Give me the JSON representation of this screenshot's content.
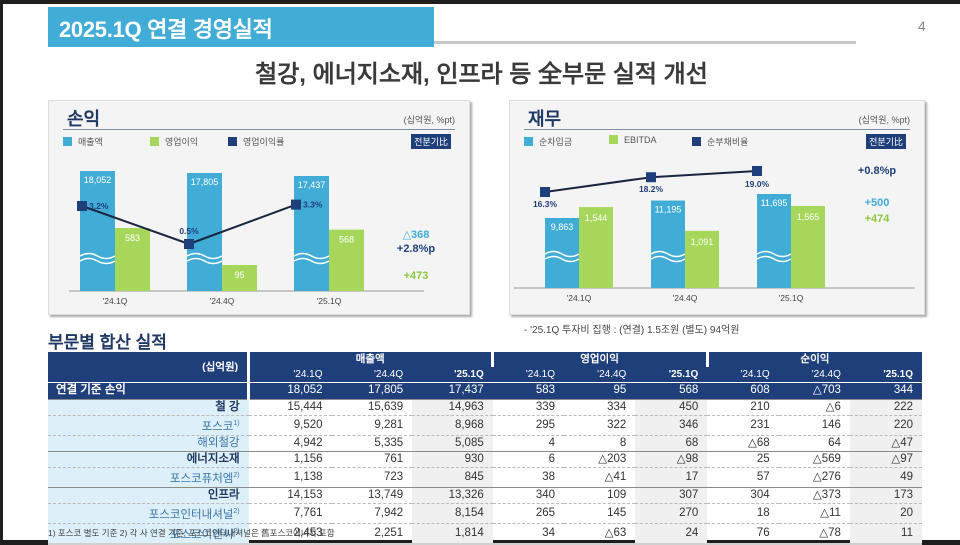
{
  "header": {
    "title": "2025.1Q 연결 경영실적",
    "page_number": "4",
    "headline": "철강, 에너지소재, 인프라 등 全부문 실적 개선"
  },
  "colors": {
    "title_bar": "#41acd6",
    "navy": "#1f3f7a",
    "sky": "#41acd6",
    "green": "#a6d75b"
  },
  "left_panel": {
    "title": "손익",
    "unit": "(십억원, %pt)",
    "legend": [
      "매출액",
      "영업이익",
      "영업이익률"
    ],
    "badge": "전분기比",
    "deltas": [
      {
        "text": "△368",
        "color": "#41acd6"
      },
      {
        "text": "+2.8%p",
        "color": "#1f3f7a"
      },
      {
        "text": "+473",
        "color": "#8cc63f"
      }
    ]
  },
  "right_panel": {
    "title": "재무",
    "unit": "(십억원, %pt)",
    "legend": [
      "순차입금",
      "EBITDA",
      "순부채비율"
    ],
    "badge": "전분기比",
    "deltas": [
      {
        "text": "+0.8%p",
        "color": "#1f3f7a"
      },
      {
        "text": "+500",
        "color": "#41acd6"
      },
      {
        "text": "+474",
        "color": "#8cc63f"
      }
    ],
    "note": "- '25.1Q 투자비 집행 : (연결) 1.5조원  (별도) 94억원"
  },
  "chart_data": [
    {
      "type": "bar",
      "title": "손익",
      "categories": [
        "'24.1Q",
        "'24.4Q",
        "'25.1Q"
      ],
      "series": [
        {
          "name": "매출액",
          "type": "bar",
          "values": [
            18052,
            17805,
            17437
          ],
          "labels": [
            "18,052",
            "17,805",
            "17,437"
          ]
        },
        {
          "name": "영업이익",
          "type": "bar",
          "values": [
            583,
            95,
            568
          ],
          "labels": [
            "583",
            "95",
            "568"
          ]
        },
        {
          "name": "영업이익률",
          "type": "line",
          "values": [
            3.2,
            0.5,
            3.3
          ],
          "labels": [
            "3.2%",
            "0.5%",
            "3.3%"
          ]
        }
      ],
      "axis_break": true,
      "xlabel": "",
      "ylabel": "",
      "grid": false,
      "legend": "top-left"
    },
    {
      "type": "bar",
      "title": "재무",
      "categories": [
        "'24.1Q",
        "'24.4Q",
        "'25.1Q"
      ],
      "series": [
        {
          "name": "순차입금",
          "type": "bar",
          "values": [
            9863,
            11195,
            11695
          ],
          "labels": [
            "9,863",
            "11,195",
            "11,695"
          ]
        },
        {
          "name": "EBITDA",
          "type": "bar",
          "values": [
            1544,
            1091,
            1565
          ],
          "labels": [
            "1,544",
            "1,091",
            "1,565"
          ]
        },
        {
          "name": "순부채비율",
          "type": "line",
          "values": [
            16.3,
            18.2,
            19.0
          ],
          "labels": [
            "16.3%",
            "18.2%",
            "19.0%"
          ]
        }
      ],
      "axis_break": true,
      "xlabel": "",
      "ylabel": "",
      "grid": false,
      "legend": "top-left"
    }
  ],
  "segment_table": {
    "section_title": "부문별 합산 실적",
    "corner": "(십억원)",
    "groups": [
      "매출액",
      "영업이익",
      "순이익"
    ],
    "periods": [
      "'24.1Q",
      "'24.4Q",
      "'25.1Q"
    ],
    "total_row": {
      "label": "연결 기준 손익",
      "values": [
        "18,052",
        "17,805",
        "17,437",
        "583",
        "95",
        "568",
        "608",
        "△703",
        "344"
      ]
    },
    "rows": [
      {
        "label": "철 강",
        "sup": "",
        "level": "main",
        "values": [
          "15,444",
          "15,639",
          "14,963",
          "339",
          "334",
          "450",
          "210",
          "△6",
          "222"
        ]
      },
      {
        "label": "포스코",
        "sup": "1)",
        "level": "sub",
        "values": [
          "9,520",
          "9,281",
          "8,968",
          "295",
          "322",
          "346",
          "231",
          "146",
          "220"
        ]
      },
      {
        "label": "해외철강",
        "sup": "",
        "level": "sub",
        "values": [
          "4,942",
          "5,335",
          "5,085",
          "4",
          "8",
          "68",
          "△68",
          "64",
          "△47"
        ]
      },
      {
        "label": "에너지소재",
        "sup": "",
        "level": "main",
        "values": [
          "1,156",
          "761",
          "930",
          "6",
          "△203",
          "△98",
          "25",
          "△569",
          "△97"
        ]
      },
      {
        "label": "포스코퓨처엠",
        "sup": "2)",
        "level": "sub",
        "values": [
          "1,138",
          "723",
          "845",
          "38",
          "△41",
          "17",
          "57",
          "△276",
          "49"
        ]
      },
      {
        "label": "인프라",
        "sup": "",
        "level": "main",
        "values": [
          "14,153",
          "13,749",
          "13,326",
          "340",
          "109",
          "307",
          "304",
          "△373",
          "173"
        ]
      },
      {
        "label": "포스코인터내셔널",
        "sup": "2)",
        "level": "sub",
        "values": [
          "7,761",
          "7,942",
          "8,154",
          "265",
          "145",
          "270",
          "18",
          "△11",
          "20"
        ]
      },
      {
        "label": "포스코이앤씨",
        "sup": "2)",
        "level": "sub",
        "values": [
          "2,453",
          "2,251",
          "1,814",
          "34",
          "△63",
          "24",
          "76",
          "△78",
          "11"
        ]
      }
    ],
    "footnote": "1) 포스코 별도 기준    2) 각 사 연결 기준, 포스코인터내셔널은 舊포스코에너지 포함"
  }
}
